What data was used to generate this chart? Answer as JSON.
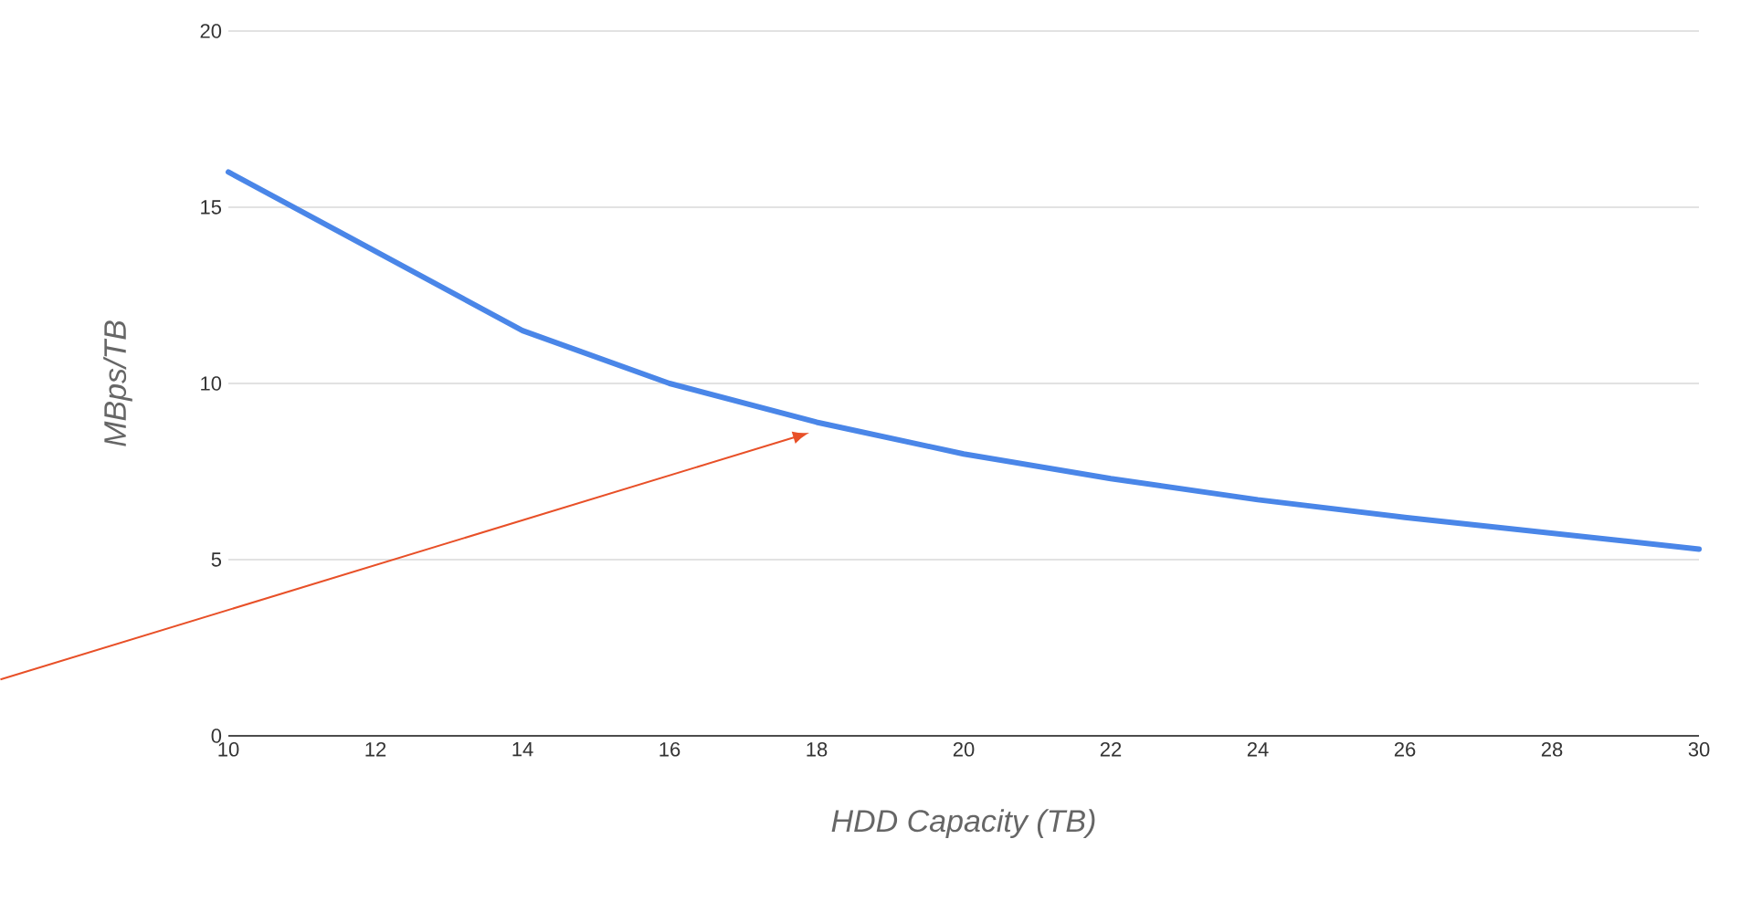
{
  "chart_data": {
    "type": "line",
    "xlabel": "HDD Capacity (TB)",
    "ylabel": "MBps/TB",
    "x": [
      10,
      14,
      16,
      18,
      20,
      22,
      24,
      26,
      28,
      30
    ],
    "series": [
      {
        "color": "#4a86e8",
        "values": [
          16,
          11.5,
          10,
          8.9,
          8,
          7.3,
          6.7,
          6.2,
          5.75,
          5.3
        ]
      }
    ],
    "xlim": [
      10,
      30
    ],
    "ylim": [
      0,
      20
    ],
    "xticks": [
      10,
      12,
      14,
      16,
      18,
      20,
      22,
      24,
      26,
      28,
      30
    ],
    "yticks": [
      0,
      5,
      10,
      15,
      20
    ],
    "grid": "y",
    "marker": "none",
    "line_style": "solid"
  }
}
